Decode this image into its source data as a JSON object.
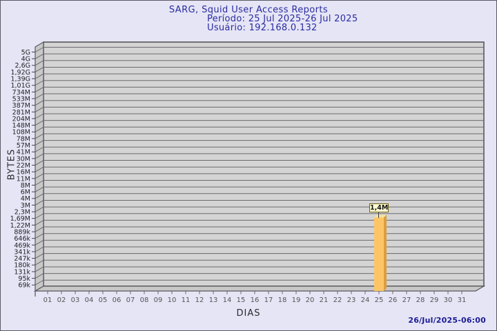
{
  "header": {
    "title": "SARG, Squid User Access Reports",
    "period": "Período: 25 Jul 2025-26 Jul 2025",
    "user": "Usuário: 192.168.0.132"
  },
  "footer": {
    "timestamp": "26/Jul/2025-06:00"
  },
  "chart_data": {
    "type": "bar",
    "title": "SARG, Squid User Access Reports",
    "subtitle": "Período: 25 Jul 2025-26 Jul 2025",
    "user_line": "Usuário: 192.168.0.132",
    "xlabel": "DIAS",
    "ylabel": "BYTES",
    "y_scale": "log",
    "grid": true,
    "y_ticks": [
      "5G",
      "4G",
      "2,6G",
      "1,92G",
      "1,39G",
      "1,01G",
      "734M",
      "533M",
      "387M",
      "281M",
      "204M",
      "148M",
      "108M",
      "78M",
      "57M",
      "41M",
      "30M",
      "22M",
      "16M",
      "11M",
      "8M",
      "6M",
      "4M",
      "3M",
      "2,3M",
      "1,69M",
      "1,22M",
      "889k",
      "646k",
      "469k",
      "341k",
      "247k",
      "180k",
      "131k",
      "95k",
      "69k"
    ],
    "x_ticks": [
      "01",
      "02",
      "03",
      "04",
      "05",
      "06",
      "07",
      "08",
      "09",
      "10",
      "11",
      "12",
      "13",
      "14",
      "15",
      "16",
      "17",
      "18",
      "19",
      "20",
      "21",
      "22",
      "23",
      "24",
      "25",
      "26",
      "27",
      "28",
      "29",
      "30",
      "31"
    ],
    "series": [
      {
        "name": "192.168.0.132",
        "points": [
          {
            "day": "25",
            "label": "1,4M",
            "approx_bytes": 1400000
          }
        ]
      }
    ],
    "colors": {
      "page_bg": "#E5E5F6",
      "plot_bg": "#D4D4D4",
      "wall": "#C8C8C8",
      "grid_line": "#6a6a6e",
      "frame_line": "#57575c",
      "bar_front": "#FDC566",
      "bar_side": "#DB9E3F",
      "bar_top": "#F3E0A2",
      "flag_bg": "#FFFFD2",
      "title_blue": "#2B2BA0",
      "tick_text": "#222222",
      "day_text": "#555555"
    }
  }
}
